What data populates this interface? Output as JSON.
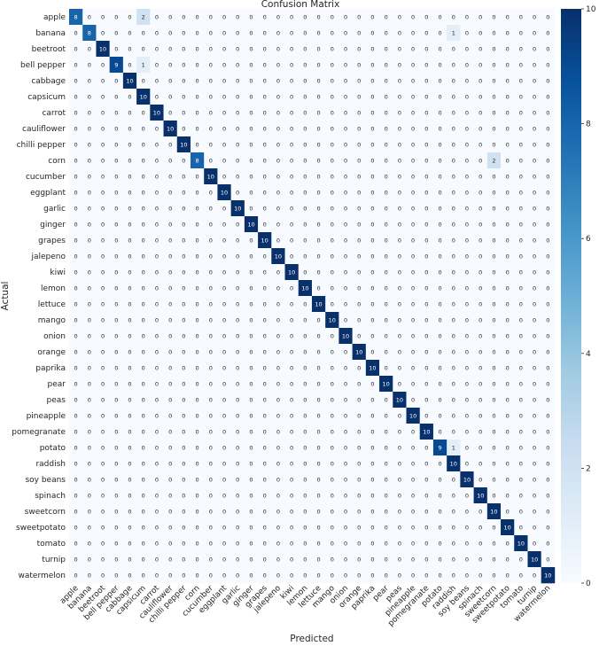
{
  "chart_data": {
    "type": "heatmap",
    "title": "Confusion Matrix",
    "xlabel": "Predicted",
    "ylabel": "Actual",
    "labels": [
      "apple",
      "banana",
      "beetroot",
      "bell pepper",
      "cabbage",
      "capsicum",
      "carrot",
      "cauliflower",
      "chilli pepper",
      "corn",
      "cucumber",
      "eggplant",
      "garlic",
      "ginger",
      "grapes",
      "jalepeno",
      "kiwi",
      "lemon",
      "lettuce",
      "mango",
      "onion",
      "orange",
      "paprika",
      "pear",
      "peas",
      "pineapple",
      "pomegranate",
      "potato",
      "raddish",
      "soy beans",
      "spinach",
      "sweetcorn",
      "sweetpotato",
      "tomato",
      "turnip",
      "watermelon"
    ],
    "diagonal": [
      8,
      8,
      10,
      9,
      10,
      10,
      10,
      10,
      10,
      8,
      10,
      10,
      10,
      10,
      10,
      10,
      10,
      10,
      10,
      10,
      10,
      10,
      10,
      10,
      10,
      10,
      10,
      9,
      10,
      10,
      10,
      10,
      10,
      10,
      10,
      10
    ],
    "off_diagonal": [
      {
        "row": 0,
        "col": 5,
        "value": 2
      },
      {
        "row": 1,
        "col": 28,
        "value": 1
      },
      {
        "row": 3,
        "col": 5,
        "value": 1
      },
      {
        "row": 9,
        "col": 31,
        "value": 2
      },
      {
        "row": 27,
        "col": 28,
        "value": 1
      }
    ],
    "colorbar": {
      "min": 0,
      "max": 10,
      "ticks": [
        0,
        2,
        4,
        6,
        8,
        10
      ],
      "colormap": "Blues"
    }
  }
}
